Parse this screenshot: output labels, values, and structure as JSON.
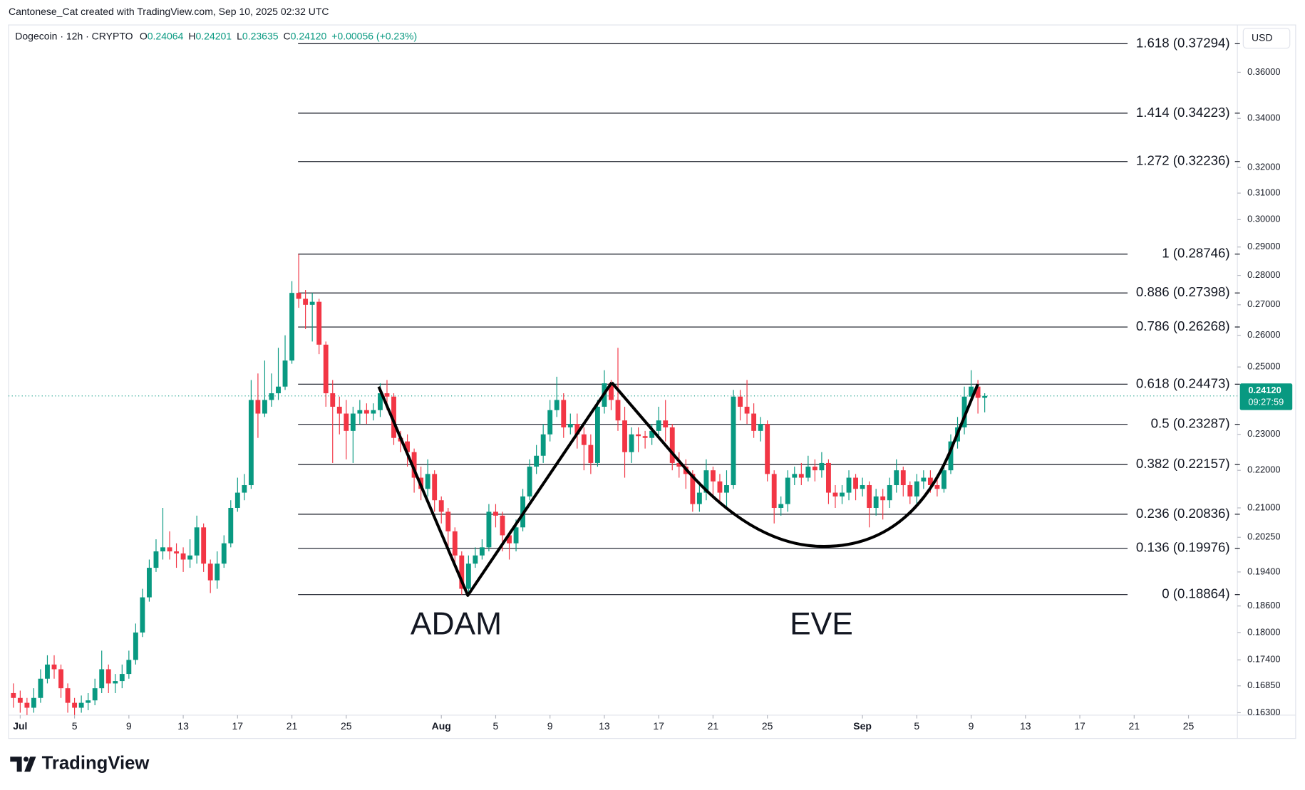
{
  "chart_data": {
    "type": "candlestick",
    "attribution": "Cantonese_Cat created with TradingView.com, Sep 10, 2025 02:32 UTC",
    "symbol": "Dogecoin · 12h · CRYPTO",
    "ohlc_legend": [
      {
        "key": "O",
        "value": "0.24064"
      },
      {
        "key": "H",
        "value": "0.24201"
      },
      {
        "key": "L",
        "value": "0.23635"
      },
      {
        "key": "C",
        "value": "0.24120"
      }
    ],
    "change": "+0.00056 (+0.23%)",
    "currency": "USD",
    "brand": "TradingView",
    "log_scale": true,
    "grid": false,
    "up_color": "#089981",
    "down_color": "#f23645",
    "xlim": [
      0.14,
      90.6
    ],
    "ylim": [
      0.1625,
      0.3817
    ],
    "xticks": [
      {
        "value": 1,
        "label": "Jul"
      },
      5,
      9,
      13,
      17,
      21,
      25,
      {
        "value": 32,
        "label": "Aug"
      },
      {
        "value": 36,
        "label": "5"
      },
      {
        "value": 40,
        "label": "9"
      },
      {
        "value": 44,
        "label": "13"
      },
      {
        "value": 48,
        "label": "17"
      },
      {
        "value": 52,
        "label": "21"
      },
      {
        "value": 56,
        "label": "25"
      },
      {
        "value": 63,
        "label": "Sep"
      },
      {
        "value": 67,
        "label": "5"
      },
      {
        "value": 71,
        "label": "9"
      },
      {
        "value": 75,
        "label": "13"
      },
      {
        "value": 79,
        "label": "17"
      },
      {
        "value": 83,
        "label": "21"
      },
      {
        "value": 87,
        "label": "25"
      }
    ],
    "yticks": [
      {
        "value": 0.36,
        "label": "0.36000"
      },
      {
        "value": 0.34,
        "label": "0.34000"
      },
      {
        "value": 0.32,
        "label": "0.32000"
      },
      {
        "value": 0.31,
        "label": "0.31000"
      },
      {
        "value": 0.3,
        "label": "0.30000"
      },
      {
        "value": 0.29,
        "label": "0.29000"
      },
      {
        "value": 0.28,
        "label": "0.28000"
      },
      {
        "value": 0.27,
        "label": "0.27000"
      },
      {
        "value": 0.26,
        "label": "0.26000"
      },
      {
        "value": 0.25,
        "label": "0.25000"
      },
      {
        "value": 0.23,
        "label": "0.23000"
      },
      {
        "value": 0.22,
        "label": "0.22000"
      },
      {
        "value": 0.21,
        "label": "0.21000"
      },
      {
        "value": 0.2025,
        "label": "0.20250"
      },
      {
        "value": 0.194,
        "label": "0.19400"
      },
      {
        "value": 0.186,
        "label": "0.18600"
      },
      {
        "value": 0.18,
        "label": "0.18000"
      },
      {
        "value": 0.174,
        "label": "0.17400"
      },
      {
        "value": 0.1685,
        "label": "0.16850"
      },
      {
        "value": 0.163,
        "label": "0.16300"
      }
    ],
    "last_price": {
      "value": 0.2412,
      "label": "0.24120"
    },
    "countdown": "09:27:59",
    "fib_levels": [
      {
        "value": 0.37294,
        "label": "1.618 (0.37294)"
      },
      {
        "value": 0.34223,
        "label": "1.414 (0.34223)"
      },
      {
        "value": 0.32236,
        "label": "1.272 (0.32236)"
      },
      {
        "value": 0.28746,
        "label": "1 (0.28746)"
      },
      {
        "value": 0.27398,
        "label": "0.886 (0.27398)"
      },
      {
        "value": 0.26268,
        "label": "0.786 (0.26268)"
      },
      {
        "value": 0.24473,
        "label": "0.618 (0.24473)"
      },
      {
        "value": 0.23287,
        "label": "0.5 (0.23287)"
      },
      {
        "value": 0.22157,
        "label": "0.382 (0.22157)"
      },
      {
        "value": 0.20836,
        "label": "0.236 (0.20836)"
      },
      {
        "value": 0.19976,
        "label": "0.136 (0.19976)"
      },
      {
        "value": 0.18864,
        "label": "0 (0.18864)"
      }
    ],
    "annotations": [
      "ADAM",
      "EVE"
    ],
    "x": [
      0.5,
      1,
      1.5,
      2,
      2.5,
      3,
      3.5,
      4,
      4.5,
      5,
      5.5,
      6,
      6.5,
      7,
      7.5,
      8,
      8.5,
      9,
      9.5,
      10,
      10.5,
      11,
      11.5,
      12,
      12.5,
      13,
      13.5,
      14,
      14.5,
      15,
      15.5,
      16,
      16.5,
      17,
      17.5,
      18,
      18.5,
      19,
      19.5,
      20,
      20.5,
      21,
      21.5,
      22,
      22.5,
      23,
      23.5,
      24,
      24.5,
      25,
      25.5,
      26,
      26.5,
      27,
      27.5,
      28,
      28.5,
      29,
      29.5,
      30,
      30.5,
      31,
      31.5,
      32,
      32.5,
      33,
      33.5,
      34,
      34.5,
      35,
      35.5,
      36,
      36.5,
      37,
      37.5,
      38,
      38.5,
      39,
      39.5,
      40,
      40.5,
      41,
      41.5,
      42,
      42.5,
      43,
      43.5,
      44,
      44.5,
      45,
      45.5,
      46,
      46.5,
      47,
      47.5,
      48,
      48.5,
      49,
      49.5,
      50,
      50.5,
      51,
      51.5,
      52,
      52.5,
      53,
      53.5,
      54,
      54.5,
      55,
      55.5,
      56,
      56.5,
      57,
      57.5,
      58,
      58.5,
      59,
      59.5,
      60,
      60.5,
      61,
      61.5,
      62,
      62.5,
      63,
      63.5,
      64,
      64.5,
      65,
      65.5,
      66,
      66.5,
      67,
      67.5,
      68,
      68.5,
      69,
      69.5,
      70,
      70.5,
      71,
      71.5,
      72
    ],
    "candles": [
      [
        0.167,
        0.169,
        0.164,
        0.166
      ],
      [
        0.166,
        0.1675,
        0.163,
        0.165
      ],
      [
        0.165,
        0.166,
        0.1625,
        0.164
      ],
      [
        0.164,
        0.168,
        0.163,
        0.166
      ],
      [
        0.166,
        0.172,
        0.165,
        0.17
      ],
      [
        0.17,
        0.175,
        0.169,
        0.173
      ],
      [
        0.173,
        0.175,
        0.17,
        0.172
      ],
      [
        0.172,
        0.173,
        0.166,
        0.168
      ],
      [
        0.168,
        0.169,
        0.163,
        0.165
      ],
      [
        0.165,
        0.166,
        0.1625,
        0.164
      ],
      [
        0.164,
        0.1665,
        0.163,
        0.165
      ],
      [
        0.165,
        0.167,
        0.1635,
        0.1655
      ],
      [
        0.1655,
        0.17,
        0.1645,
        0.168
      ],
      [
        0.168,
        0.176,
        0.167,
        0.172
      ],
      [
        0.172,
        0.173,
        0.167,
        0.169
      ],
      [
        0.169,
        0.171,
        0.167,
        0.1695
      ],
      [
        0.1695,
        0.173,
        0.168,
        0.171
      ],
      [
        0.171,
        0.176,
        0.17,
        0.174
      ],
      [
        0.174,
        0.182,
        0.173,
        0.18
      ],
      [
        0.18,
        0.19,
        0.179,
        0.188
      ],
      [
        0.188,
        0.197,
        0.187,
        0.195
      ],
      [
        0.195,
        0.202,
        0.194,
        0.199
      ],
      [
        0.199,
        0.21,
        0.197,
        0.2
      ],
      [
        0.2,
        0.204,
        0.197,
        0.199
      ],
      [
        0.199,
        0.201,
        0.195,
        0.1985
      ],
      [
        0.1985,
        0.2,
        0.194,
        0.197
      ],
      [
        0.197,
        0.202,
        0.195,
        0.198
      ],
      [
        0.198,
        0.208,
        0.196,
        0.205
      ],
      [
        0.205,
        0.206,
        0.194,
        0.196
      ],
      [
        0.196,
        0.197,
        0.189,
        0.192
      ],
      [
        0.192,
        0.199,
        0.19,
        0.196
      ],
      [
        0.196,
        0.203,
        0.195,
        0.201
      ],
      [
        0.201,
        0.212,
        0.2,
        0.21
      ],
      [
        0.21,
        0.218,
        0.209,
        0.214
      ],
      [
        0.214,
        0.219,
        0.212,
        0.216
      ],
      [
        0.216,
        0.246,
        0.215,
        0.24
      ],
      [
        0.24,
        0.248,
        0.229,
        0.236
      ],
      [
        0.236,
        0.252,
        0.235,
        0.24
      ],
      [
        0.24,
        0.248,
        0.238,
        0.242
      ],
      [
        0.242,
        0.256,
        0.24,
        0.244
      ],
      [
        0.244,
        0.26,
        0.243,
        0.252
      ],
      [
        0.252,
        0.278,
        0.251,
        0.274
      ],
      [
        0.274,
        0.2875,
        0.269,
        0.272
      ],
      [
        0.272,
        0.275,
        0.262,
        0.27
      ],
      [
        0.27,
        0.274,
        0.258,
        0.271
      ],
      [
        0.271,
        0.272,
        0.254,
        0.257
      ],
      [
        0.257,
        0.258,
        0.238,
        0.242
      ],
      [
        0.242,
        0.246,
        0.222,
        0.238
      ],
      [
        0.238,
        0.241,
        0.23,
        0.236
      ],
      [
        0.236,
        0.24,
        0.223,
        0.231
      ],
      [
        0.231,
        0.238,
        0.222,
        0.236
      ],
      [
        0.236,
        0.24,
        0.233,
        0.237
      ],
      [
        0.237,
        0.239,
        0.233,
        0.236
      ],
      [
        0.236,
        0.239,
        0.234,
        0.237
      ],
      [
        0.237,
        0.245,
        0.235,
        0.242
      ],
      [
        0.242,
        0.246,
        0.237,
        0.241
      ],
      [
        0.241,
        0.242,
        0.227,
        0.229
      ],
      [
        0.229,
        0.231,
        0.225,
        0.228
      ],
      [
        0.228,
        0.23,
        0.221,
        0.225
      ],
      [
        0.225,
        0.226,
        0.214,
        0.218
      ],
      [
        0.218,
        0.221,
        0.212,
        0.215
      ],
      [
        0.215,
        0.223,
        0.213,
        0.219
      ],
      [
        0.219,
        0.22,
        0.209,
        0.212
      ],
      [
        0.212,
        0.213,
        0.206,
        0.209
      ],
      [
        0.209,
        0.21,
        0.2,
        0.204
      ],
      [
        0.204,
        0.205,
        0.195,
        0.198
      ],
      [
        0.198,
        0.199,
        0.18864,
        0.19
      ],
      [
        0.19,
        0.198,
        0.189,
        0.196
      ],
      [
        0.196,
        0.2,
        0.195,
        0.198
      ],
      [
        0.198,
        0.202,
        0.197,
        0.2
      ],
      [
        0.2,
        0.211,
        0.199,
        0.209
      ],
      [
        0.209,
        0.211,
        0.205,
        0.208
      ],
      [
        0.208,
        0.209,
        0.199,
        0.203
      ],
      [
        0.203,
        0.204,
        0.197,
        0.201
      ],
      [
        0.201,
        0.207,
        0.199,
        0.205
      ],
      [
        0.205,
        0.215,
        0.204,
        0.213
      ],
      [
        0.213,
        0.223,
        0.212,
        0.221
      ],
      [
        0.221,
        0.227,
        0.219,
        0.224
      ],
      [
        0.224,
        0.233,
        0.222,
        0.23
      ],
      [
        0.23,
        0.24,
        0.228,
        0.237
      ],
      [
        0.237,
        0.247,
        0.235,
        0.24
      ],
      [
        0.24,
        0.242,
        0.229,
        0.232
      ],
      [
        0.232,
        0.236,
        0.23,
        0.233
      ],
      [
        0.233,
        0.236,
        0.226,
        0.23
      ],
      [
        0.23,
        0.232,
        0.22,
        0.227
      ],
      [
        0.227,
        0.23,
        0.219,
        0.222
      ],
      [
        0.222,
        0.24,
        0.221,
        0.238
      ],
      [
        0.238,
        0.249,
        0.236,
        0.245
      ],
      [
        0.245,
        0.246,
        0.237,
        0.24
      ],
      [
        0.24,
        0.256,
        0.231,
        0.234
      ],
      [
        0.234,
        0.238,
        0.218,
        0.225
      ],
      [
        0.225,
        0.232,
        0.222,
        0.23
      ],
      [
        0.23,
        0.232,
        0.225,
        0.2295
      ],
      [
        0.2295,
        0.231,
        0.226,
        0.229
      ],
      [
        0.229,
        0.233,
        0.227,
        0.231
      ],
      [
        0.231,
        0.238,
        0.229,
        0.234
      ],
      [
        0.234,
        0.24,
        0.228,
        0.232
      ],
      [
        0.232,
        0.233,
        0.22,
        0.222
      ],
      [
        0.222,
        0.225,
        0.218,
        0.221
      ],
      [
        0.221,
        0.223,
        0.215,
        0.219
      ],
      [
        0.219,
        0.22,
        0.209,
        0.211
      ],
      [
        0.211,
        0.217,
        0.209,
        0.214
      ],
      [
        0.214,
        0.223,
        0.212,
        0.22
      ],
      [
        0.22,
        0.221,
        0.213,
        0.217
      ],
      [
        0.217,
        0.219,
        0.211,
        0.214
      ],
      [
        0.214,
        0.22,
        0.21,
        0.216
      ],
      [
        0.216,
        0.243,
        0.215,
        0.241
      ],
      [
        0.241,
        0.243,
        0.234,
        0.238
      ],
      [
        0.238,
        0.246,
        0.233,
        0.236
      ],
      [
        0.236,
        0.239,
        0.229,
        0.231
      ],
      [
        0.231,
        0.235,
        0.228,
        0.233
      ],
      [
        0.233,
        0.234,
        0.217,
        0.219
      ],
      [
        0.219,
        0.22,
        0.206,
        0.21
      ],
      [
        0.21,
        0.213,
        0.208,
        0.211
      ],
      [
        0.211,
        0.22,
        0.209,
        0.218
      ],
      [
        0.218,
        0.221,
        0.216,
        0.219
      ],
      [
        0.219,
        0.222,
        0.216,
        0.218
      ],
      [
        0.218,
        0.224,
        0.217,
        0.221
      ],
      [
        0.221,
        0.223,
        0.217,
        0.22
      ],
      [
        0.22,
        0.225,
        0.218,
        0.222
      ],
      [
        0.222,
        0.223,
        0.211,
        0.214
      ],
      [
        0.214,
        0.216,
        0.21,
        0.213
      ],
      [
        0.213,
        0.216,
        0.211,
        0.214
      ],
      [
        0.214,
        0.22,
        0.212,
        0.218
      ],
      [
        0.218,
        0.219,
        0.212,
        0.215
      ],
      [
        0.215,
        0.218,
        0.213,
        0.216
      ],
      [
        0.216,
        0.217,
        0.205,
        0.21
      ],
      [
        0.21,
        0.215,
        0.208,
        0.213
      ],
      [
        0.213,
        0.215,
        0.207,
        0.212
      ],
      [
        0.212,
        0.218,
        0.21,
        0.216
      ],
      [
        0.216,
        0.223,
        0.214,
        0.22
      ],
      [
        0.22,
        0.221,
        0.213,
        0.216
      ],
      [
        0.216,
        0.217,
        0.211,
        0.213
      ],
      [
        0.213,
        0.219,
        0.211,
        0.217
      ],
      [
        0.217,
        0.22,
        0.215,
        0.218
      ],
      [
        0.218,
        0.22,
        0.214,
        0.216
      ],
      [
        0.216,
        0.218,
        0.213,
        0.215
      ],
      [
        0.215,
        0.222,
        0.214,
        0.22
      ],
      [
        0.22,
        0.23,
        0.219,
        0.228
      ],
      [
        0.228,
        0.235,
        0.226,
        0.232
      ],
      [
        0.232,
        0.244,
        0.23,
        0.241
      ],
      [
        0.241,
        0.249,
        0.239,
        0.244
      ],
      [
        0.244,
        0.246,
        0.236,
        0.24064
      ],
      [
        0.24064,
        0.24201,
        0.23635,
        0.2412
      ]
    ]
  }
}
